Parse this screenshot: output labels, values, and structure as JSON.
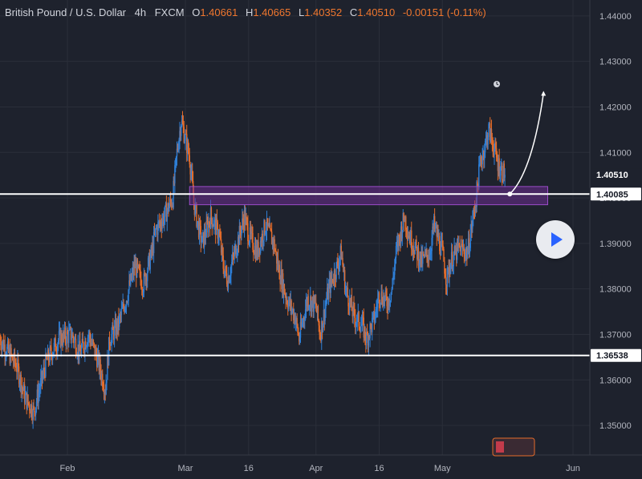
{
  "header": {
    "symbol": "British Pound / U.S. Dollar",
    "interval": "4h",
    "exchange": "FXCM",
    "ohlc": [
      {
        "key": "O",
        "value": "1.40661"
      },
      {
        "key": "H",
        "value": "1.40665"
      },
      {
        "key": "L",
        "value": "1.40352"
      },
      {
        "key": "C",
        "value": "1.40510"
      }
    ],
    "change": "-0.00151 (-0.11%)"
  },
  "colors": {
    "background": "#1e222d",
    "grid": "#2a2e39",
    "candle_up": "#2f7fd6",
    "candle_down": "#e56c2a",
    "level_line": "#ffffff",
    "zone_fill": "#6b2d8f",
    "zone_border": "#9a4cc7",
    "axis_text": "#b2b5be",
    "play_icon": "#2962ff"
  },
  "icons": {
    "play_button": "play-icon",
    "clock": "clock-icon",
    "flag": "flag-icon"
  },
  "chart_data": {
    "type": "candlestick",
    "timeframe": "4h",
    "x_tick_labels": [
      "Feb",
      "Mar",
      "16",
      "Apr",
      "16",
      "May",
      "Jun"
    ],
    "x_tick_dates": [
      "2021-02-01",
      "2021-03-01",
      "2021-03-16",
      "2021-04-01",
      "2021-04-16",
      "2021-05-01",
      "2021-06-01"
    ],
    "y_tick_labels": [
      "1.44000",
      "1.43000",
      "1.42000",
      "1.41000",
      "1.40000",
      "1.39000",
      "1.38000",
      "1.37000",
      "1.36000",
      "1.35000"
    ],
    "y_ticks": [
      1.44,
      1.43,
      1.42,
      1.41,
      1.4,
      1.39,
      1.38,
      1.37,
      1.36,
      1.35
    ],
    "ylim": [
      1.3435,
      1.4435
    ],
    "xlim": [
      "2021-01-16",
      "2021-06-05"
    ],
    "grid": true,
    "closes": [
      [
        "2021-01-16",
        1.369
      ],
      [
        "2021-01-20",
        1.363
      ],
      [
        "2021-01-22",
        1.356
      ],
      [
        "2021-01-24",
        1.353
      ],
      [
        "2021-01-27",
        1.364
      ],
      [
        "2021-01-30",
        1.369
      ],
      [
        "2021-02-02",
        1.37
      ],
      [
        "2021-02-04",
        1.366
      ],
      [
        "2021-02-06",
        1.37
      ],
      [
        "2021-02-08",
        1.365
      ],
      [
        "2021-02-10",
        1.358
      ],
      [
        "2021-02-11",
        1.369
      ],
      [
        "2021-02-13",
        1.372
      ],
      [
        "2021-02-15",
        1.378
      ],
      [
        "2021-02-17",
        1.385
      ],
      [
        "2021-02-19",
        1.381
      ],
      [
        "2021-02-21",
        1.388
      ],
      [
        "2021-02-22",
        1.393
      ],
      [
        "2021-02-24",
        1.396
      ],
      [
        "2021-02-26",
        1.4
      ],
      [
        "2021-02-27",
        1.41
      ],
      [
        "2021-02-28",
        1.417
      ],
      [
        "2021-03-02",
        1.409
      ],
      [
        "2021-03-03",
        1.399
      ],
      [
        "2021-03-04",
        1.394
      ],
      [
        "2021-03-05",
        1.39
      ],
      [
        "2021-03-07",
        1.396
      ],
      [
        "2021-03-09",
        1.392
      ],
      [
        "2021-03-10",
        1.385
      ],
      [
        "2021-03-11",
        1.382
      ],
      [
        "2021-03-13",
        1.389
      ],
      [
        "2021-03-15",
        1.396
      ],
      [
        "2021-03-16",
        1.392
      ],
      [
        "2021-03-18",
        1.388
      ],
      [
        "2021-03-20",
        1.394
      ],
      [
        "2021-03-22",
        1.39
      ],
      [
        "2021-03-23",
        1.385
      ],
      [
        "2021-03-25",
        1.378
      ],
      [
        "2021-03-27",
        1.374
      ],
      [
        "2021-03-28",
        1.369
      ],
      [
        "2021-03-30",
        1.378
      ],
      [
        "2021-04-01",
        1.376
      ],
      [
        "2021-04-02",
        1.37
      ],
      [
        "2021-04-04",
        1.38
      ],
      [
        "2021-04-06",
        1.385
      ],
      [
        "2021-04-07",
        1.388
      ],
      [
        "2021-04-08",
        1.38
      ],
      [
        "2021-04-10",
        1.374
      ],
      [
        "2021-04-12",
        1.372
      ],
      [
        "2021-04-13",
        1.369
      ],
      [
        "2021-04-15",
        1.374
      ],
      [
        "2021-04-16",
        1.379
      ],
      [
        "2021-04-18",
        1.377
      ],
      [
        "2021-04-19",
        1.38
      ],
      [
        "2021-04-20",
        1.388
      ],
      [
        "2021-04-22",
        1.396
      ],
      [
        "2021-04-23",
        1.392
      ],
      [
        "2021-04-24",
        1.39
      ],
      [
        "2021-04-26",
        1.386
      ],
      [
        "2021-04-28",
        1.388
      ],
      [
        "2021-04-29",
        1.394
      ],
      [
        "2021-05-01",
        1.388
      ],
      [
        "2021-05-02",
        1.382
      ],
      [
        "2021-05-03",
        1.386
      ],
      [
        "2021-05-05",
        1.389
      ],
      [
        "2021-05-07",
        1.388
      ],
      [
        "2021-05-08",
        1.394
      ],
      [
        "2021-05-09",
        1.4
      ],
      [
        "2021-05-10",
        1.408
      ],
      [
        "2021-05-11",
        1.411
      ],
      [
        "2021-05-12",
        1.415
      ],
      [
        "2021-05-13",
        1.412
      ],
      [
        "2021-05-14",
        1.408
      ],
      [
        "2021-05-15",
        1.406
      ],
      [
        "2021-05-16",
        1.4051
      ]
    ],
    "horizontal_levels": [
      {
        "price": 1.40085,
        "label": "1.40085"
      },
      {
        "price": 1.36538,
        "label": "1.36538"
      }
    ],
    "current_price": {
      "price": 1.4051,
      "label": "1.40510"
    },
    "zone": {
      "x_start": "2021-03-02",
      "x_end": "2021-05-26",
      "y_low": 1.3985,
      "y_high": 1.4025
    },
    "projection_arrow": [
      [
        "2021-05-17",
        1.40085
      ],
      [
        "2021-05-20",
        1.4035
      ],
      [
        "2021-05-23",
        1.41
      ],
      [
        "2021-05-25",
        1.423
      ]
    ]
  }
}
